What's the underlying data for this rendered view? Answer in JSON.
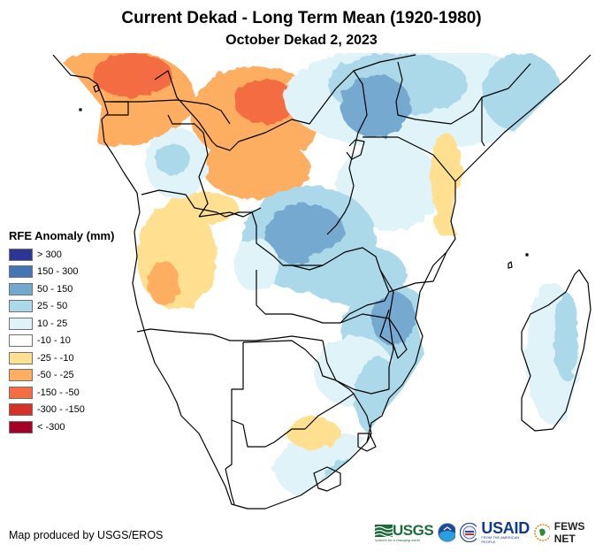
{
  "header": {
    "title": "Current Dekad - Long Term Mean (1920-1980)",
    "subtitle": "October Dekad 2, 2023"
  },
  "legend": {
    "title": "RFE Anomaly (mm)",
    "items": [
      {
        "label": "> 300",
        "color": "#2c3593"
      },
      {
        "label": "150 - 300",
        "color": "#4575b5"
      },
      {
        "label": "50 - 150",
        "color": "#74a9cf"
      },
      {
        "label": "25 - 50",
        "color": "#abd9e9"
      },
      {
        "label": "10 - 25",
        "color": "#e0f3f8"
      },
      {
        "label": "-10 - 10",
        "color": "#ffffff"
      },
      {
        "label": "-25 - -10",
        "color": "#fee090"
      },
      {
        "label": "-50 - -25",
        "color": "#fdae61"
      },
      {
        "label": "-150 - -50",
        "color": "#f46d43"
      },
      {
        "label": "-300 - -150",
        "color": "#d73027"
      },
      {
        "label": "< -300",
        "color": "#a50026"
      }
    ]
  },
  "map": {
    "region": "Central, East and Southern Africa",
    "variable": "Rainfall estimate (RFE) anomaly",
    "border_color": "#000000",
    "anomaly_zones": [
      {
        "area": "Gabon / Cameroon coast",
        "class": "-150 - -50"
      },
      {
        "area": "Equatorial Guinea",
        "class": "-150 - -50"
      },
      {
        "area": "Central African Republic",
        "class": "-50 - -25"
      },
      {
        "area": "Northern DR Congo",
        "class": "-50 - -25"
      },
      {
        "area": "Western Angola",
        "class": "-25 - -10"
      },
      {
        "area": "Southern DR Congo / Zambia",
        "class": "50 - 150"
      },
      {
        "area": "Uganda / Western Kenya",
        "class": "50 - 150"
      },
      {
        "area": "Southern Ethiopia / Somalia",
        "class": "25 - 50"
      },
      {
        "area": "Coastal Kenya / Tanzania",
        "class": "-25 - -10"
      },
      {
        "area": "Zimbabwe / Mozambique",
        "class": "25 - 50"
      },
      {
        "area": "Central South Africa",
        "class": "-25 - -10"
      },
      {
        "area": "Eastern South Africa",
        "class": "25 - 50"
      },
      {
        "area": "Eastern Madagascar",
        "class": "25 - 50"
      },
      {
        "area": "Namibia / Botswana",
        "class": "-10 - 10"
      }
    ]
  },
  "footer": {
    "credit": "Map produced by USGS/EROS",
    "logos": [
      {
        "name": "USGS",
        "text": "USGS",
        "tagline": "science for a changing world"
      },
      {
        "name": "NOAA",
        "text": ""
      },
      {
        "name": "Department of State seal",
        "text": ""
      },
      {
        "name": "USAID",
        "text": "USAID",
        "tagline": "FROM THE AMERICAN PEOPLE"
      },
      {
        "name": "FEWS NET",
        "text": "FEWS NET"
      }
    ]
  }
}
